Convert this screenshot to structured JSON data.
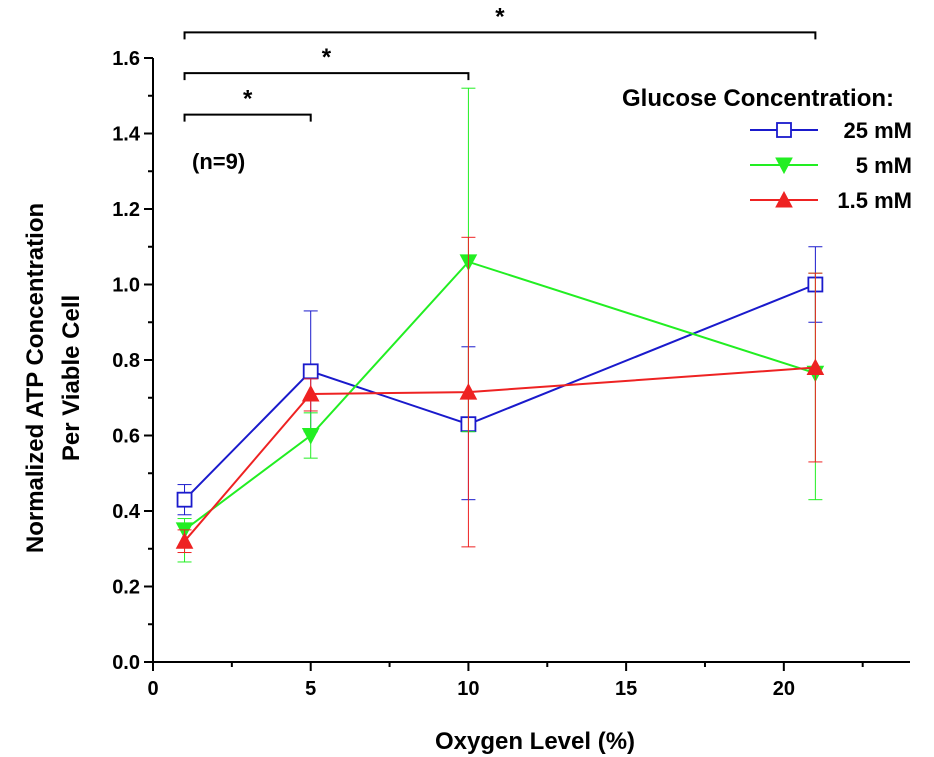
{
  "chart_data": {
    "type": "line",
    "xlabel": "Oxygen Level (%)",
    "ylabel_lines": [
      "Normalized ATP Concentration",
      "Per Viable Cell"
    ],
    "xlim": [
      0,
      24
    ],
    "ylim": [
      0,
      1.6
    ],
    "x_ticks": [
      0,
      5,
      10,
      15,
      20
    ],
    "y_ticks": [
      0.0,
      0.2,
      0.4,
      0.6,
      0.8,
      1.0,
      1.2,
      1.4,
      1.6
    ],
    "y_tick_labels": [
      "0.0",
      "0.2",
      "0.4",
      "0.6",
      "0.8",
      "1.0",
      "1.2",
      "1.4",
      "1.6"
    ],
    "x": [
      1,
      5,
      10,
      21
    ],
    "series": [
      {
        "name": "25 mM",
        "color": "#1a1acc",
        "marker": "open-square",
        "values": [
          0.43,
          0.77,
          0.63,
          1.0
        ],
        "err_high": [
          0.47,
          0.93,
          0.835,
          1.1
        ],
        "err_low": [
          0.39,
          0.61,
          0.43,
          0.9
        ]
      },
      {
        "name": "5 mM",
        "color": "#22ee22",
        "marker": "filled-down-triangle",
        "values": [
          0.35,
          0.6,
          1.06,
          0.765
        ],
        "err_high": [
          0.38,
          0.66,
          1.52,
          1.03
        ],
        "err_low": [
          0.265,
          0.54,
          0.61,
          0.43
        ]
      },
      {
        "name": "1.5 mM",
        "color": "#ee2222",
        "marker": "filled-up-triangle",
        "values": [
          0.32,
          0.71,
          0.715,
          0.78
        ],
        "err_high": [
          0.35,
          0.75,
          1.125,
          1.03
        ],
        "err_low": [
          0.29,
          0.665,
          0.305,
          0.53
        ]
      }
    ],
    "legend": {
      "title": "Glucose Concentration:",
      "position": "top-right"
    },
    "annotations": {
      "n_label": "(n=9)",
      "brackets": [
        {
          "x_start": 1,
          "x_end": 5,
          "label": "*"
        },
        {
          "x_start": 1,
          "x_end": 10,
          "label": "*"
        },
        {
          "x_start": 1,
          "x_end": 21,
          "label": "*"
        }
      ]
    }
  }
}
